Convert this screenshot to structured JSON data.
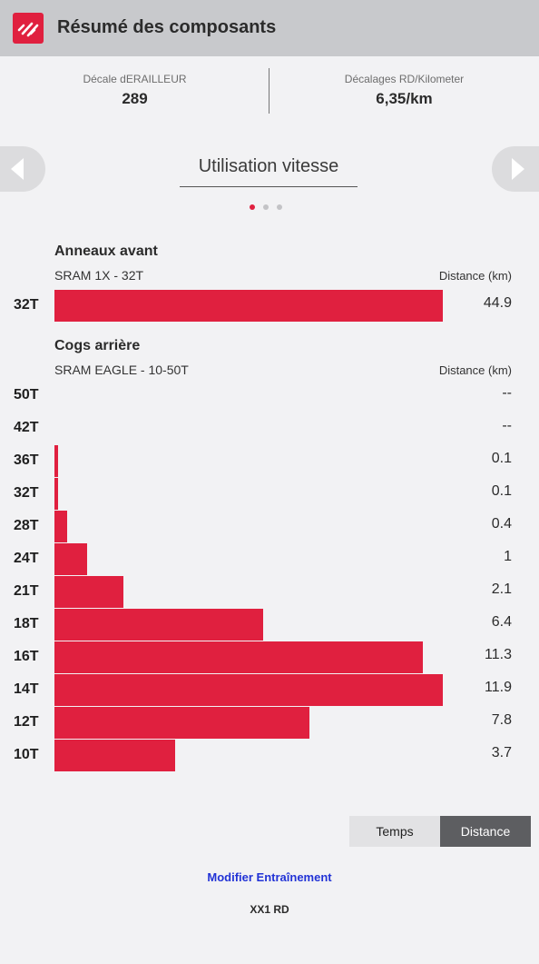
{
  "header": {
    "title": "Résumé des composants",
    "logo_icon": "brand-logo-icon",
    "accent": "#e0203f"
  },
  "stats": [
    {
      "label": "Décale dERAILLEUR",
      "value": "289"
    },
    {
      "label": "Décalages RD/Kilometer",
      "value": "6,35/km"
    }
  ],
  "carousel": {
    "title": "Utilisation vitesse",
    "pages": 3,
    "active_page": 0,
    "prev_icon": "chevron-left-icon",
    "next_icon": "chevron-right-icon"
  },
  "chart_data": [
    {
      "type": "bar",
      "orientation": "horizontal",
      "title": "Anneaux avant",
      "subtitle": "SRAM 1X - 32T",
      "unit_label": "Distance (km)",
      "categories": [
        "32T"
      ],
      "values": [
        44.9
      ],
      "value_labels": [
        "44.9"
      ],
      "xlim": [
        0,
        44.9
      ]
    },
    {
      "type": "bar",
      "orientation": "horizontal",
      "title": "Cogs arrière",
      "subtitle": "SRAM EAGLE - 10-50T",
      "unit_label": "Distance (km)",
      "categories": [
        "50T",
        "42T",
        "36T",
        "32T",
        "28T",
        "24T",
        "21T",
        "18T",
        "16T",
        "14T",
        "12T",
        "10T"
      ],
      "values": [
        null,
        null,
        0.1,
        0.1,
        0.4,
        1,
        2.1,
        6.4,
        11.3,
        11.9,
        7.8,
        3.7
      ],
      "value_labels": [
        "--",
        "--",
        "0.1",
        "0.1",
        "0.4",
        "1",
        "2.1",
        "6.4",
        "11.3",
        "11.9",
        "7.8",
        "3.7"
      ],
      "xlim": [
        0,
        11.9
      ]
    }
  ],
  "toggle": {
    "options": [
      "Temps",
      "Distance"
    ],
    "selected": "Distance"
  },
  "actions": {
    "edit_link": "Modifier Entraînement"
  },
  "footer": {
    "component_name": "XX1 RD"
  }
}
